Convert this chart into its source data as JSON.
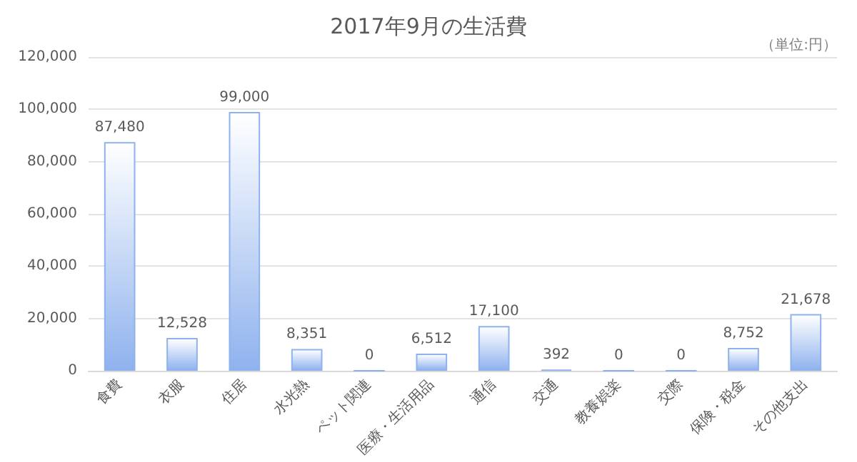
{
  "chart_data": {
    "type": "bar",
    "title": "2017年9月の生活費",
    "annotations": [
      "（単位:円）"
    ],
    "categories": [
      "食費",
      "衣服",
      "住居",
      "水光熱",
      "ペット関連",
      "医療・生活用品",
      "通信",
      "交通",
      "教養娯楽",
      "交際",
      "保険・税金",
      "その他支出"
    ],
    "values": [
      87480,
      12528,
      99000,
      8351,
      0,
      6512,
      17100,
      392,
      0,
      0,
      8752,
      21678
    ],
    "value_labels": [
      "87,480",
      "12,528",
      "99,000",
      "8,351",
      "0",
      "6,512",
      "17,100",
      "392",
      "0",
      "0",
      "8,752",
      "21,678"
    ],
    "color": "#8fb2ee",
    "ylim": [
      0,
      120000
    ],
    "yticks": [
      0,
      {
        "value": 20000,
        "label": "20,000"
      },
      {
        "value": 40000,
        "label": "40,000"
      },
      {
        "value": 60000,
        "label": "60,000"
      },
      {
        "value": 80000,
        "label": "80,000"
      },
      {
        "value": 100000,
        "label": "100,000"
      },
      {
        "value": 120000,
        "label": "120,000"
      }
    ],
    "grid": "y"
  }
}
